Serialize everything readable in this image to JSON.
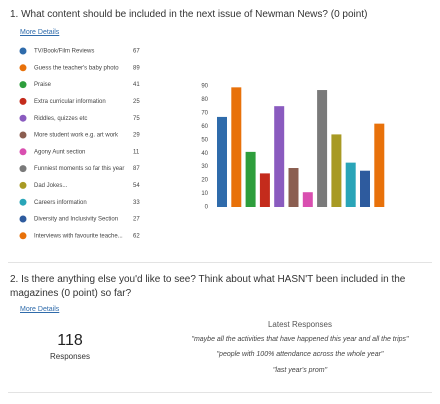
{
  "question1": {
    "title": "1. What content should be included in the next issue of Newman News? (0 point)",
    "link": "More Details"
  },
  "chart_data": {
    "type": "bar",
    "categories": [
      "TV/Book/Film Reviews",
      "Guess the teacher's baby photo",
      "Praise",
      "Extra curricular information",
      "Riddles, quizzes etc",
      "More student work e.g. art work",
      "Agony Aunt section",
      "Funniest moments so far this year",
      "Dad Jokes...",
      "Careers information",
      "Diversity and Inclusivity Section",
      "Interviews with favourite teache..."
    ],
    "values": [
      67,
      89,
      41,
      25,
      75,
      29,
      11,
      87,
      54,
      33,
      27,
      62
    ],
    "colors": [
      "#2f6bab",
      "#e8710a",
      "#2e9e3c",
      "#c42b1c",
      "#8a5bbf",
      "#8b5e50",
      "#d94fb0",
      "#7a7a7a",
      "#a89a24",
      "#2aa5b8",
      "#2e5b9e",
      "#e8710a"
    ],
    "ylim": [
      0,
      90
    ],
    "yticks": [
      0,
      10,
      20,
      30,
      40,
      50,
      60,
      70,
      80,
      90
    ],
    "grid": false
  },
  "question2": {
    "title": "2. Is there anything else you'd like to see? Think about what HASN'T been included in the magazines  (0 point) so far?",
    "link": "More Details",
    "count": 118,
    "count_label": "Responses",
    "latest_title": "Latest Responses",
    "latest": [
      "\"maybe all the activities that have happened this year and all the trips\"",
      "\"people with 100% attendance across the whole year\"",
      "\"last year's prom\""
    ]
  }
}
